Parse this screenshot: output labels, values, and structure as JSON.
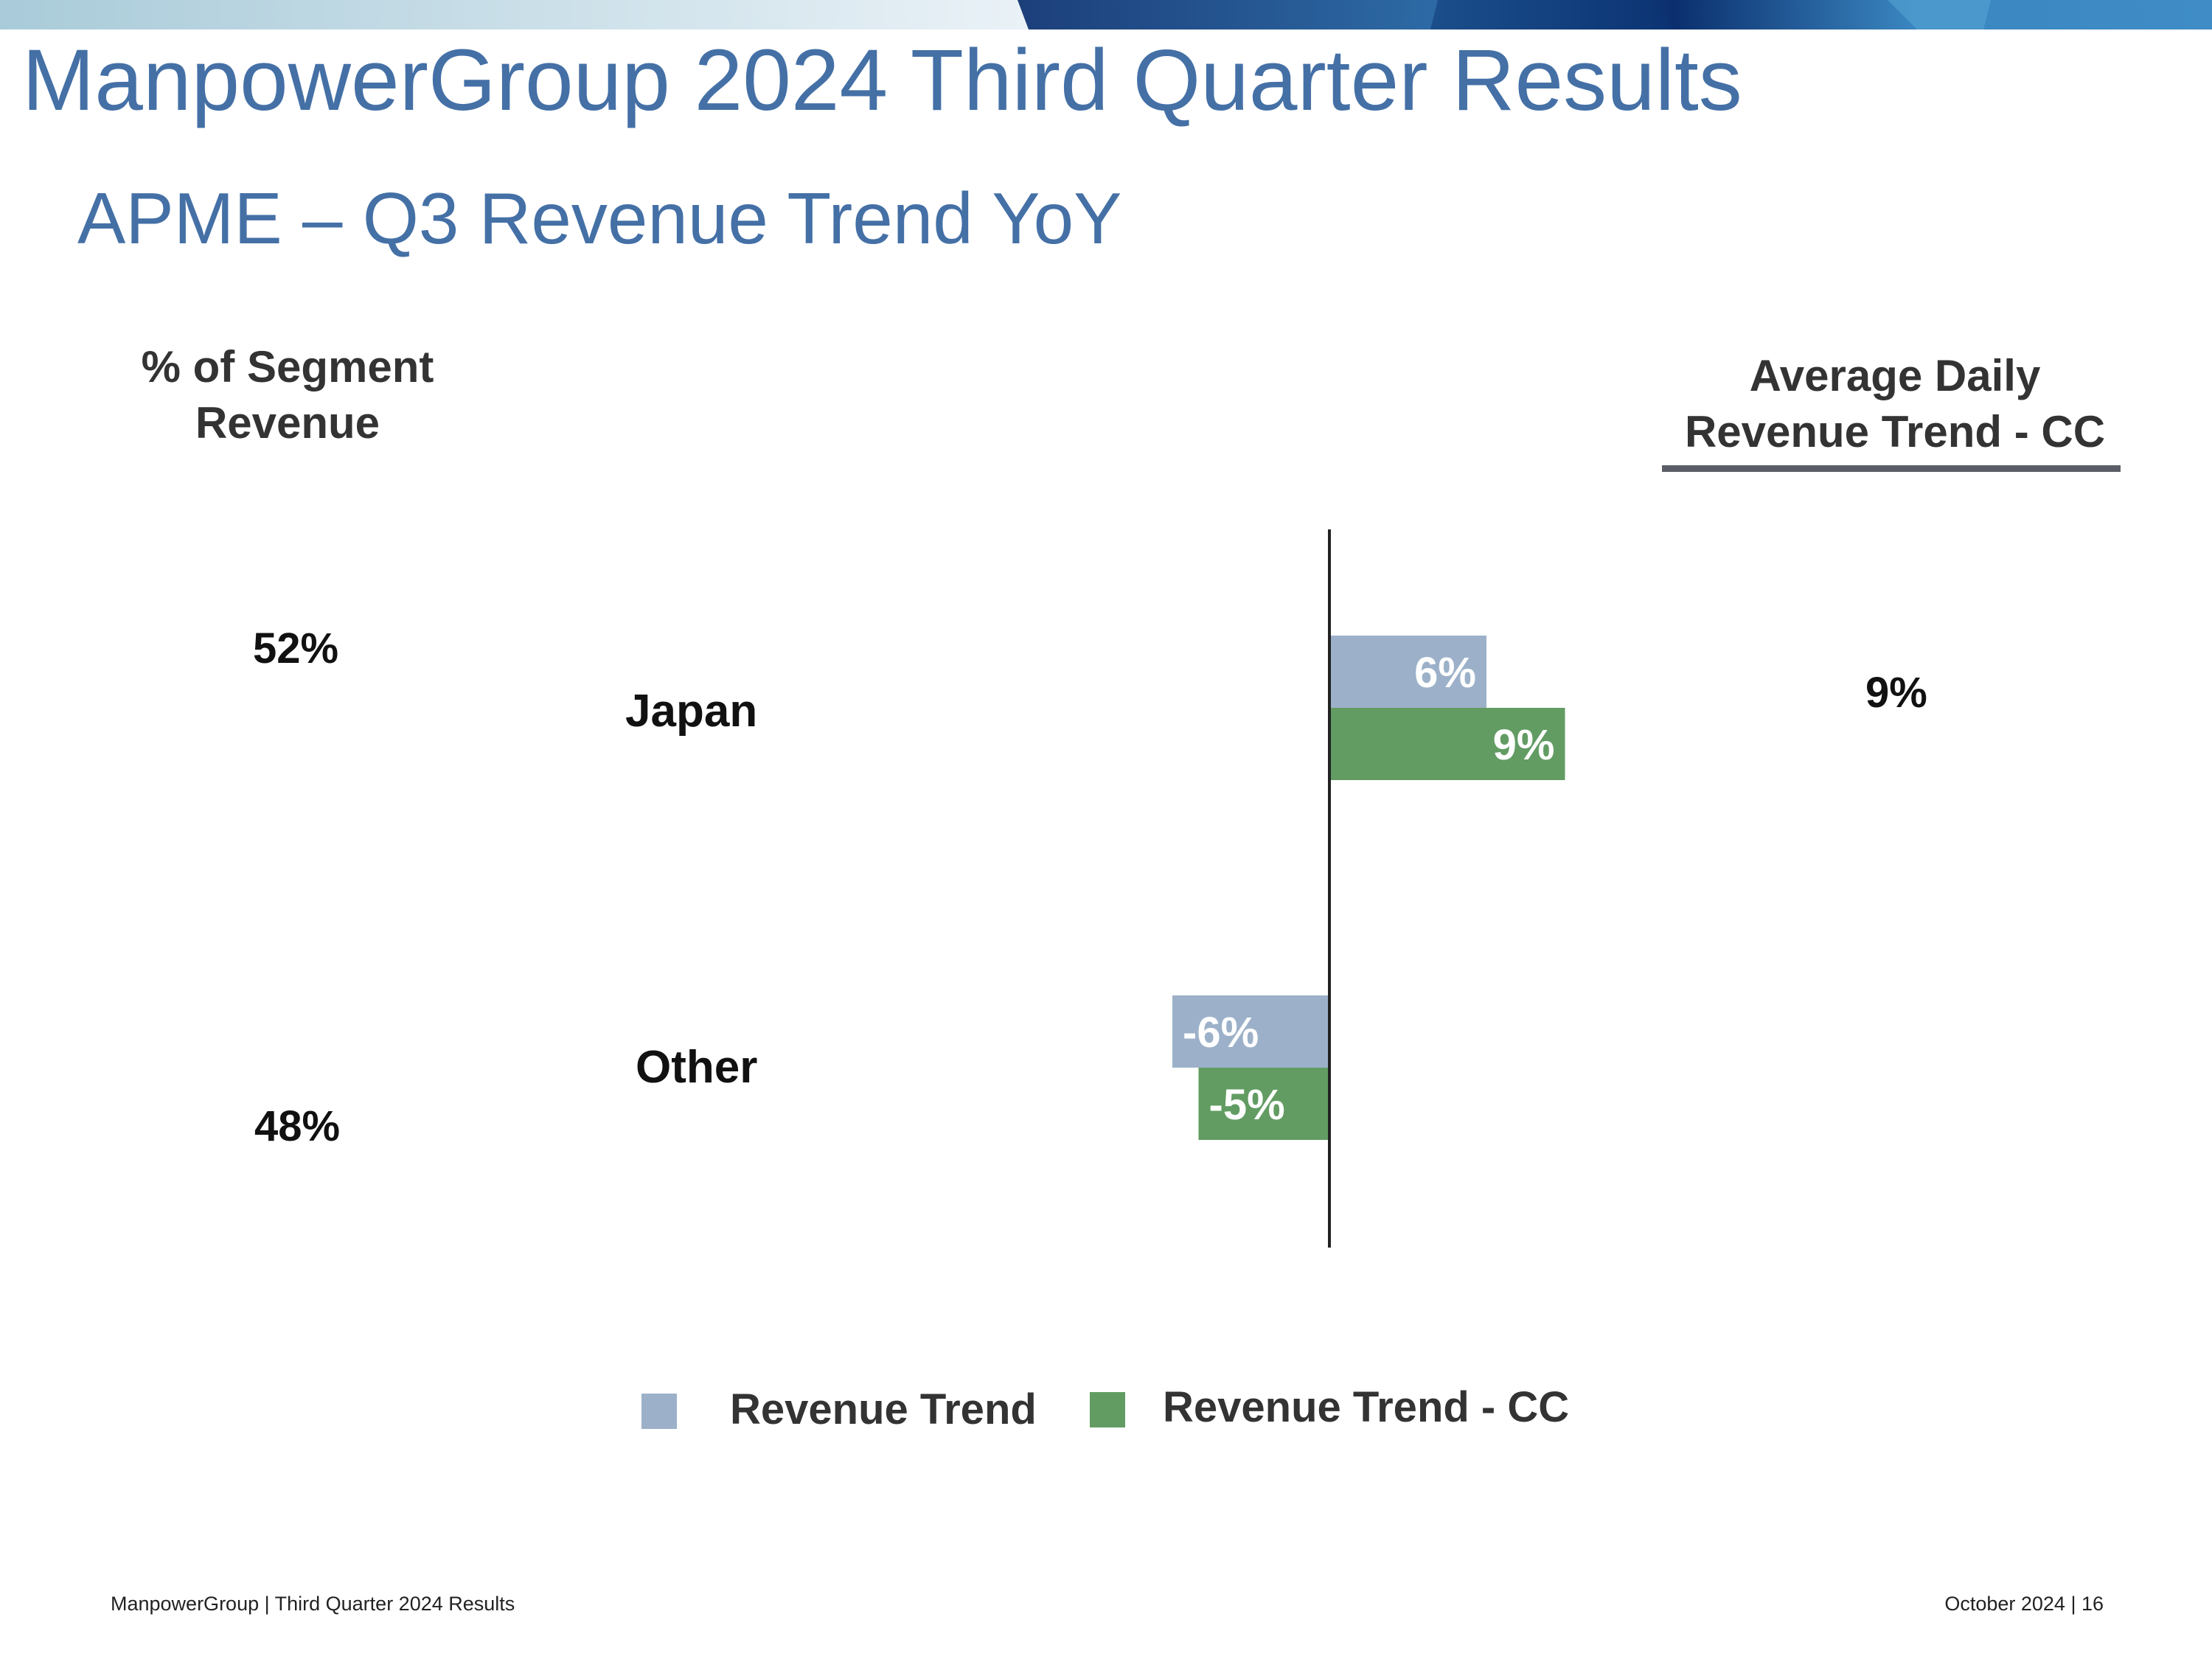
{
  "title": "ManpowerGroup 2024 Third Quarter Results",
  "subtitle": "APME – Q3 Revenue Trend YoY",
  "segment_header": {
    "line1": "% of Segment",
    "line2": "Revenue"
  },
  "adr_header": {
    "line1": "Average Daily",
    "line2": "Revenue Trend - CC"
  },
  "segment_share": [
    {
      "segment": "Japan",
      "value": "52%"
    },
    {
      "segment": "Other",
      "value": "48%"
    }
  ],
  "adr_values": [
    {
      "segment": "Japan",
      "value": "9%"
    }
  ],
  "footer": {
    "left": "ManpowerGroup  |  Third Quarter 2024 Results",
    "right": "October 2024   |   16"
  },
  "colors": {
    "title": "#4470a6",
    "revenue_trend": "#9cb1c9",
    "revenue_trend_cc": "#629c63"
  },
  "chart_data": {
    "type": "bar",
    "orientation": "horizontal",
    "categories": [
      "Japan",
      "Other"
    ],
    "series": [
      {
        "name": "Revenue Trend",
        "values": [
          6,
          -6
        ],
        "labels": [
          "6%",
          "-6%"
        ]
      },
      {
        "name": "Revenue Trend - CC",
        "values": [
          9,
          -5
        ],
        "labels": [
          "9%",
          "-5%"
        ]
      }
    ],
    "legend": [
      "Revenue Trend",
      "Revenue Trend - CC"
    ],
    "legend_position": "bottom",
    "grid": false
  }
}
